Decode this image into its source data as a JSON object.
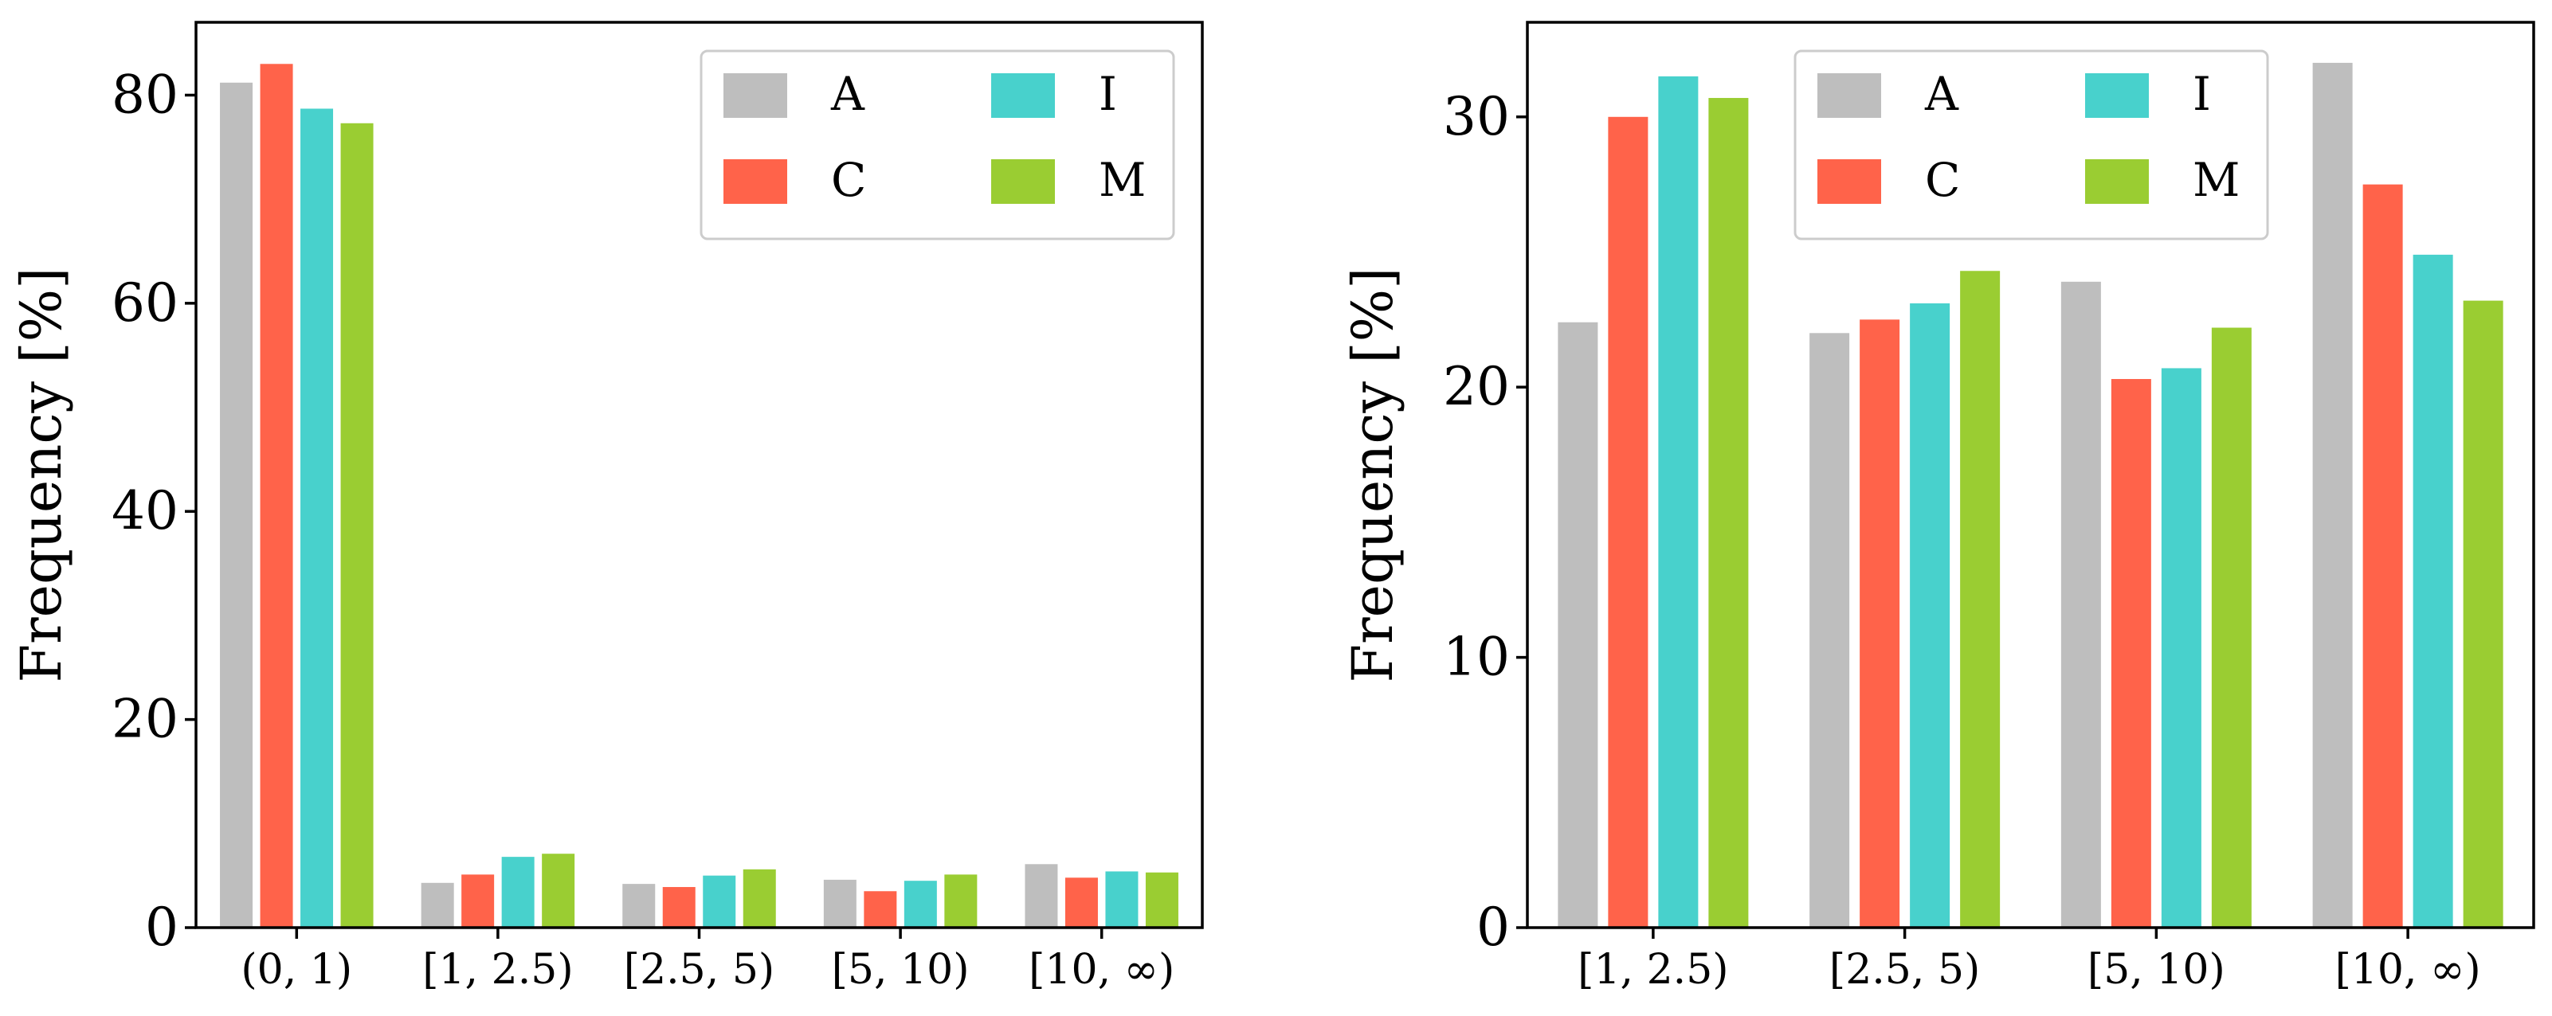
{
  "colors": {
    "A": "#bebebe",
    "C": "#ff634a",
    "I": "#48d1cc",
    "M": "#9acd32",
    "axis": "#000000",
    "legend_border": "#cccccc"
  },
  "chart_data": [
    {
      "type": "bar",
      "title": "",
      "xlabel": "",
      "ylabel": "Frequency [%]",
      "ylim": [
        0,
        87
      ],
      "yticks": [
        0,
        20,
        40,
        60,
        80
      ],
      "ytick_labels": [
        "0",
        "20",
        "40",
        "60",
        "80"
      ],
      "categories": [
        "(0, 1)",
        "[1, 2.5)",
        "[2.5, 5)",
        "[5, 10)",
        "[10, ∞)"
      ],
      "legend": {
        "placement": "top-right",
        "columns": 2,
        "order": [
          "A",
          "I",
          "C",
          "M"
        ]
      },
      "series": [
        {
          "name": "A",
          "values": [
            81.2,
            4.3,
            4.2,
            4.6,
            6.1
          ]
        },
        {
          "name": "C",
          "values": [
            83.0,
            5.1,
            3.9,
            3.5,
            4.8
          ]
        },
        {
          "name": "I",
          "values": [
            78.7,
            6.8,
            5.0,
            4.5,
            5.4
          ]
        },
        {
          "name": "M",
          "values": [
            77.3,
            7.1,
            5.6,
            5.1,
            5.3
          ]
        }
      ]
    },
    {
      "type": "bar",
      "title": "",
      "xlabel": "",
      "ylabel": "Frequency [%]",
      "ylim": [
        0,
        33.5
      ],
      "yticks": [
        0,
        10,
        20,
        30
      ],
      "ytick_labels": [
        "0",
        "10",
        "20",
        "30"
      ],
      "categories": [
        "[1, 2.5)",
        "[2.5, 5)",
        "[5, 10)",
        "[10, ∞)"
      ],
      "legend": {
        "placement": "top-center",
        "columns": 2,
        "order": [
          "A",
          "I",
          "C",
          "M"
        ]
      },
      "series": [
        {
          "name": "A",
          "values": [
            22.4,
            22.0,
            23.9,
            32.0
          ]
        },
        {
          "name": "C",
          "values": [
            30.0,
            22.5,
            20.3,
            27.5
          ]
        },
        {
          "name": "I",
          "values": [
            31.5,
            23.1,
            20.7,
            24.9
          ]
        },
        {
          "name": "M",
          "values": [
            30.7,
            24.3,
            22.2,
            23.2
          ]
        }
      ]
    }
  ]
}
